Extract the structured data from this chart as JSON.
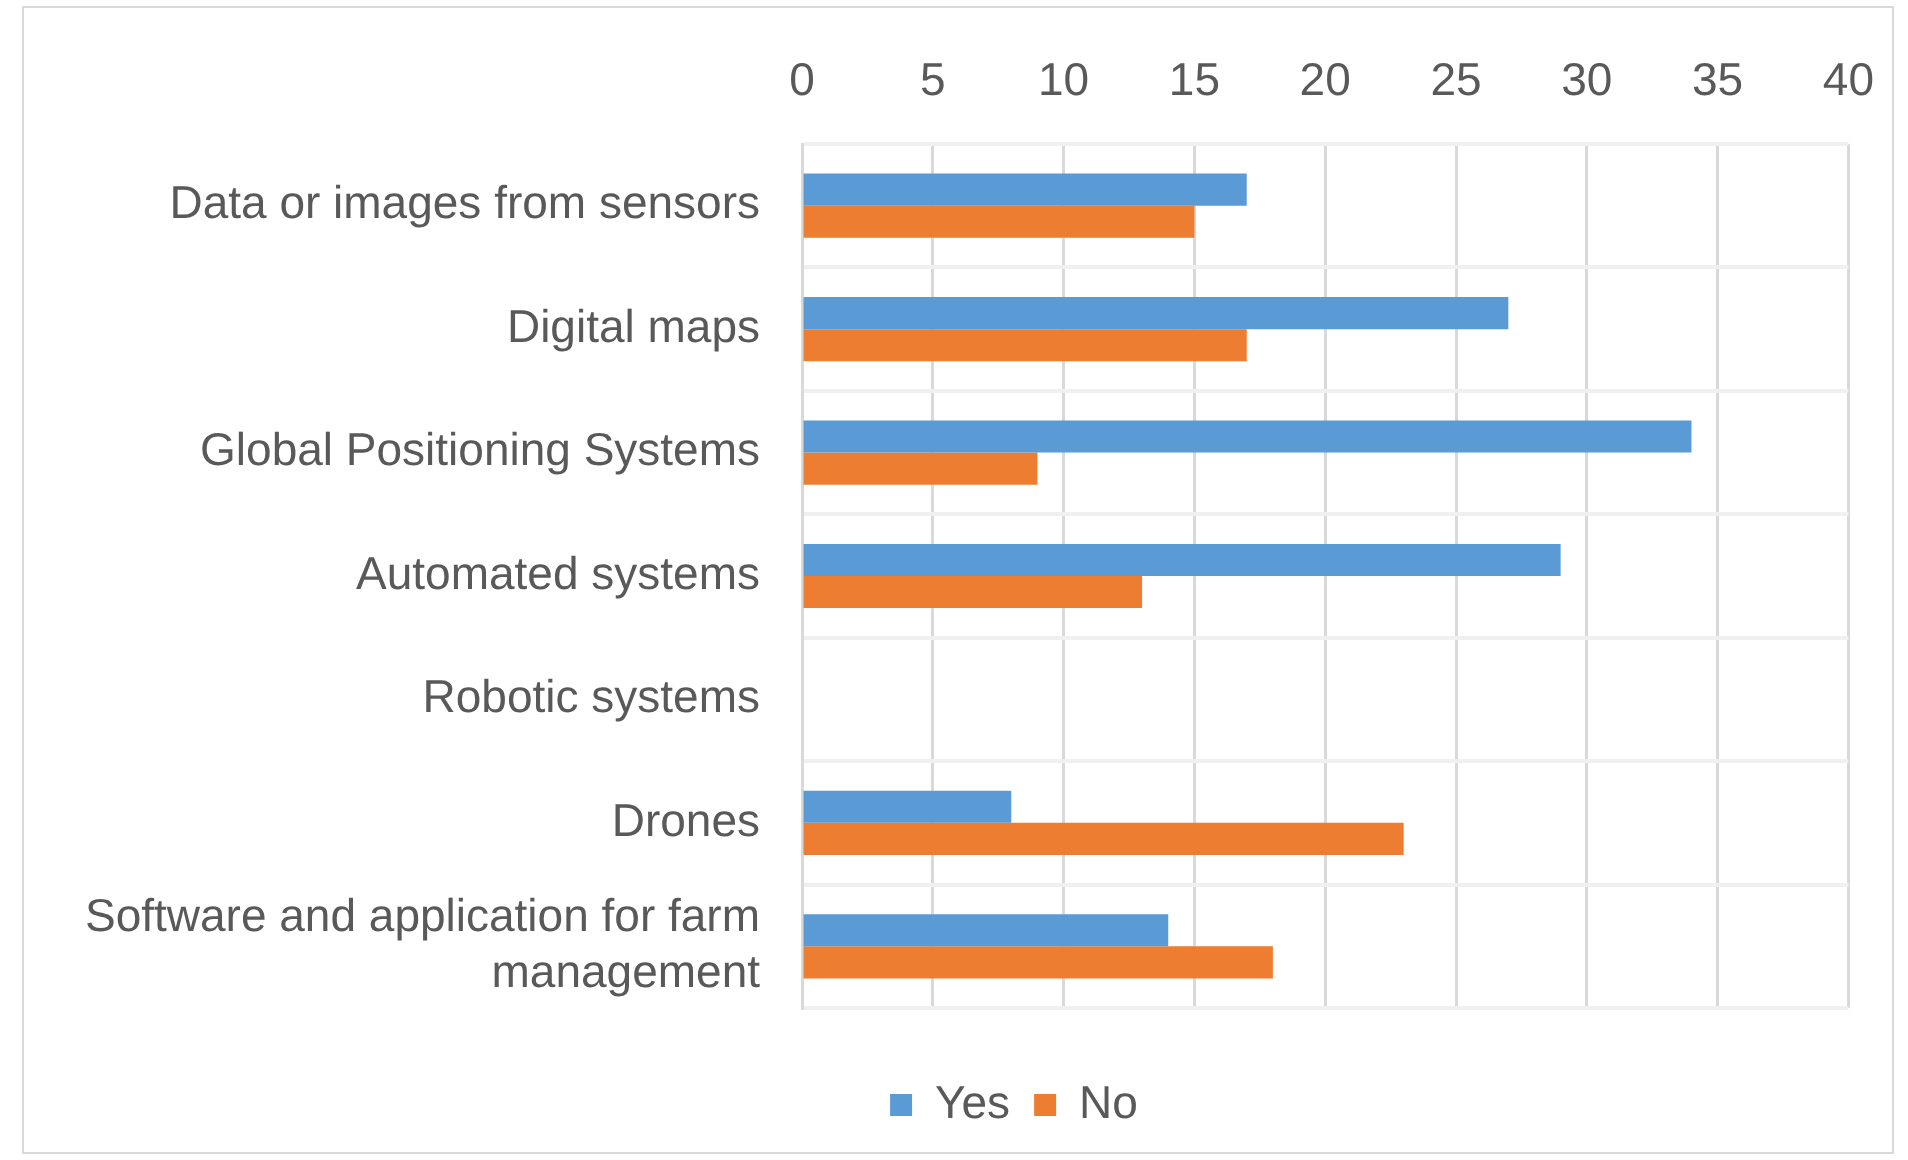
{
  "chart_data": {
    "type": "bar",
    "orientation": "horizontal",
    "categories": [
      "Data or images from sensors",
      "Digital maps",
      "Global Positioning Systems",
      "Automated systems",
      "Robotic systems",
      "Drones",
      "Software and application for farm management"
    ],
    "series": [
      {
        "name": "Yes",
        "color": "#5b9bd5",
        "values": [
          17,
          27,
          34,
          29,
          null,
          8,
          14
        ]
      },
      {
        "name": "No",
        "color": "#ed7d31",
        "values": [
          15,
          17,
          9,
          13,
          null,
          23,
          18
        ]
      }
    ],
    "xlim": [
      0,
      40
    ],
    "xticks": [
      0,
      5,
      10,
      15,
      20,
      25,
      30,
      35,
      40
    ],
    "grid": true,
    "legend": "bottom"
  }
}
